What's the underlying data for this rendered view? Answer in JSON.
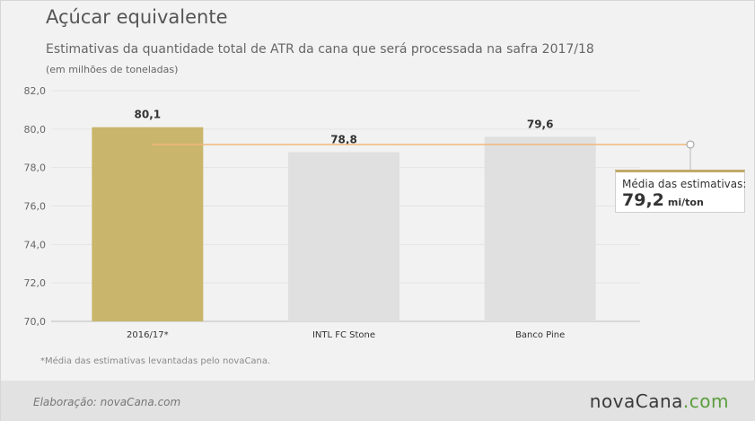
{
  "header": {
    "title": "Açúcar equivalente",
    "subtitle": "Estimativas da quantidade total de ATR da cana que será processada na safra 2017/18",
    "unit_note": "(em milhões de toneladas)"
  },
  "chart_data": {
    "type": "bar",
    "categories": [
      "2016/17*",
      "INTL FC Stone",
      "Banco Pine"
    ],
    "values": [
      80.1,
      78.8,
      79.6
    ],
    "value_labels": [
      "80,1",
      "78,8",
      "79,6"
    ],
    "ylim": [
      70,
      82
    ],
    "yticks": [
      70,
      72,
      74,
      76,
      78,
      80,
      82
    ],
    "ytick_labels": [
      "70,0",
      "72,0",
      "74,0",
      "76,0",
      "78,0",
      "80,0",
      "82,0"
    ],
    "grid": true,
    "bar_colors": [
      "#c9b66c",
      "#e0e0e0",
      "#e0e0e0"
    ],
    "average": {
      "value": 79.2,
      "label": "Média das estimativas:",
      "value_text": "79,2",
      "unit": "mi/ton",
      "line_color": "#f0b77a"
    }
  },
  "footnote": "*Média das estimativas levantadas pelo novaCana.",
  "footer": {
    "credit": "Elaboração: novaCana.com",
    "logo_main": "novaCana",
    "logo_accent": ".com"
  }
}
